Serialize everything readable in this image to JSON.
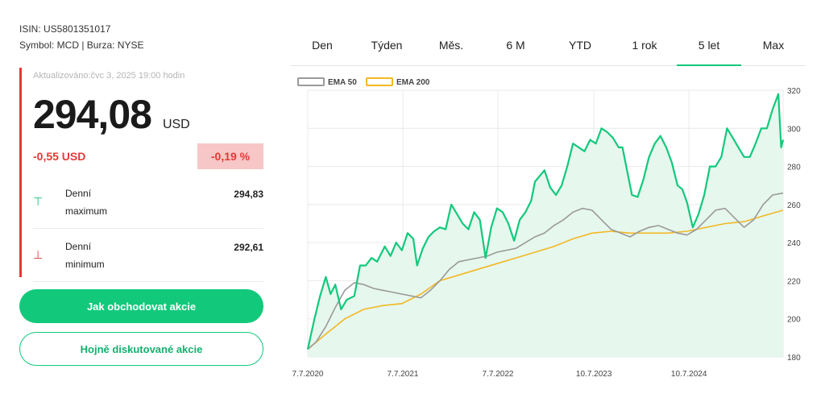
{
  "instrument": {
    "isin": "ISIN: US5801351017",
    "symbol_exchange": "Symbol: MCD | Burza: NYSE"
  },
  "quote": {
    "updated": "Aktualizováno:čvc 3, 2025 19:00 hodin",
    "price": "294,08",
    "currency": "USD",
    "change_abs": "-0,55 USD",
    "change_pct": "-0,19 %",
    "day_high_label_1": "Denní",
    "day_high_label_2": "maximum",
    "day_high_value": "294,83",
    "day_low_label_1": "Denní",
    "day_low_label_2": "minimum",
    "day_low_value": "292,61",
    "colors": {
      "negative": "#e53935",
      "positive": "#18c27a"
    }
  },
  "buttons": {
    "trade": "Jak obchodovat akcie",
    "discussed": "Hojně diskutované akcie"
  },
  "tabs": [
    {
      "label": "Den"
    },
    {
      "label": "Týden"
    },
    {
      "label": "Měs."
    },
    {
      "label": "6 M"
    },
    {
      "label": "YTD"
    },
    {
      "label": "1 rok"
    },
    {
      "label": "5 let",
      "active": true
    },
    {
      "label": "Max"
    }
  ],
  "chart_data": {
    "type": "area",
    "legend": [
      "EMA 50",
      "EMA 200"
    ],
    "legend_placement": "top-left",
    "x_ticks": [
      "7.7.2020",
      "7.7.2021",
      "7.7.2022",
      "10.7.2023",
      "10.7.2024"
    ],
    "x_tick_years": [
      2020.51,
      2021.51,
      2022.51,
      2023.52,
      2024.52
    ],
    "x_range": [
      2020.51,
      2025.51
    ],
    "ylim": [
      180,
      320
    ],
    "y_ticks": [
      180,
      200,
      220,
      240,
      260,
      280,
      300,
      320
    ],
    "grid": true,
    "y_axis_position": "right",
    "colors": {
      "price": "#12c97b",
      "area": "#e6f7ee",
      "ema50": "#9a9a9a",
      "ema200": "#f2b824"
    },
    "series": [
      {
        "name": "price",
        "x": [
          2020.51,
          2020.58,
          2020.64,
          2020.7,
          2020.75,
          2020.8,
          2020.86,
          2020.92,
          2021.0,
          2021.06,
          2021.12,
          2021.18,
          2021.24,
          2021.32,
          2021.38,
          2021.44,
          2021.5,
          2021.56,
          2021.62,
          2021.66,
          2021.72,
          2021.78,
          2021.84,
          2021.9,
          2021.96,
          2022.02,
          2022.08,
          2022.14,
          2022.2,
          2022.26,
          2022.32,
          2022.38,
          2022.44,
          2022.5,
          2022.56,
          2022.62,
          2022.68,
          2022.74,
          2022.8,
          2022.86,
          2022.9,
          2022.95,
          2023.0,
          2023.06,
          2023.12,
          2023.18,
          2023.24,
          2023.3,
          2023.36,
          2023.42,
          2023.48,
          2023.54,
          2023.6,
          2023.66,
          2023.72,
          2023.78,
          2023.82,
          2023.86,
          2023.92,
          2023.98,
          2024.04,
          2024.1,
          2024.16,
          2024.22,
          2024.28,
          2024.34,
          2024.4,
          2024.45,
          2024.5,
          2024.56,
          2024.62,
          2024.68,
          2024.74,
          2024.8,
          2024.86,
          2024.92,
          2024.98,
          2025.04,
          2025.1,
          2025.16,
          2025.22,
          2025.28,
          2025.34,
          2025.4,
          2025.46,
          2025.49,
          2025.51
        ],
        "values": [
          184,
          200,
          212,
          222,
          213,
          218,
          205,
          210,
          212,
          228,
          228,
          232,
          230,
          238,
          233,
          240,
          236,
          245,
          242,
          228,
          237,
          243,
          246,
          248,
          247,
          260,
          255,
          250,
          247,
          256,
          252,
          232,
          248,
          258,
          256,
          250,
          241,
          252,
          256,
          262,
          272,
          275,
          278,
          269,
          265,
          270,
          280,
          292,
          290,
          288,
          294,
          292,
          300,
          298,
          295,
          290,
          290,
          280,
          265,
          264,
          273,
          285,
          292,
          296,
          290,
          282,
          270,
          268,
          261,
          248,
          255,
          265,
          280,
          280,
          285,
          300,
          295,
          290,
          285,
          285,
          292,
          300,
          300,
          310,
          318,
          290,
          294
        ]
      },
      {
        "name": "EMA 50",
        "x": [
          2020.51,
          2020.6,
          2020.7,
          2020.8,
          2020.9,
          2021.0,
          2021.1,
          2021.2,
          2021.3,
          2021.4,
          2021.5,
          2021.6,
          2021.7,
          2021.8,
          2021.9,
          2022.0,
          2022.1,
          2022.2,
          2022.3,
          2022.4,
          2022.5,
          2022.6,
          2022.7,
          2022.8,
          2022.9,
          2023.0,
          2023.1,
          2023.2,
          2023.3,
          2023.4,
          2023.5,
          2023.6,
          2023.7,
          2023.8,
          2023.9,
          2024.0,
          2024.1,
          2024.2,
          2024.3,
          2024.4,
          2024.5,
          2024.6,
          2024.7,
          2024.8,
          2024.9,
          2025.0,
          2025.1,
          2025.2,
          2025.3,
          2025.4,
          2025.51
        ],
        "values": [
          184,
          188,
          196,
          206,
          215,
          219,
          218,
          216,
          215,
          214,
          213,
          212,
          211,
          215,
          220,
          226,
          230,
          231,
          232,
          233,
          235,
          236,
          237,
          240,
          243,
          245,
          249,
          252,
          256,
          258,
          257,
          252,
          247,
          245,
          243,
          246,
          248,
          249,
          247,
          245,
          244,
          247,
          252,
          257,
          258,
          253,
          248,
          252,
          260,
          265,
          266
        ]
      },
      {
        "name": "EMA 200",
        "x": [
          2020.51,
          2020.7,
          2020.9,
          2021.1,
          2021.3,
          2021.5,
          2021.7,
          2021.9,
          2022.1,
          2022.3,
          2022.5,
          2022.7,
          2022.9,
          2023.1,
          2023.3,
          2023.5,
          2023.7,
          2023.9,
          2024.1,
          2024.3,
          2024.5,
          2024.7,
          2024.9,
          2025.1,
          2025.3,
          2025.51
        ],
        "values": [
          184,
          192,
          200,
          205,
          207,
          208,
          213,
          220,
          223,
          226,
          229,
          232,
          235,
          238,
          242,
          245,
          246,
          245,
          245,
          245,
          246,
          248,
          250,
          251,
          254,
          257
        ]
      }
    ]
  }
}
